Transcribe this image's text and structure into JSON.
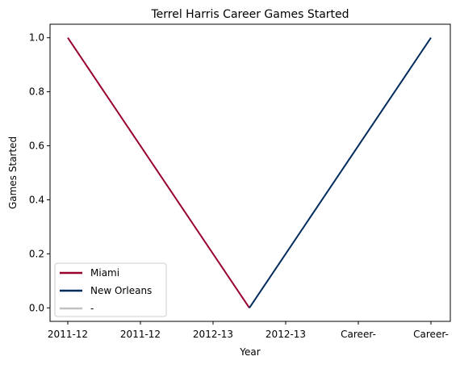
{
  "chart_data": {
    "type": "line",
    "title": "Terrel Harris Career Games Started",
    "xlabel": "Year",
    "ylabel": "Games Started",
    "categories": [
      "2011-12",
      "2011-12",
      "2012-13",
      "2012-13",
      "Career-",
      "Career-"
    ],
    "ylim": [
      -0.05,
      1.05
    ],
    "yticks": [
      0.0,
      0.2,
      0.4,
      0.6,
      0.8,
      1.0
    ],
    "ytick_labels": [
      "0.0",
      "0.2",
      "0.4",
      "0.6",
      "0.8",
      "1.0"
    ],
    "grid": false,
    "legend_position": "bottom-left",
    "series": [
      {
        "name": "Miami",
        "color": "#98002e",
        "points": [
          {
            "x": "2011-12",
            "y": 1.0
          },
          {
            "x": "2012-13",
            "y": 0.0
          }
        ]
      },
      {
        "name": "New Orleans",
        "color": "#002b5c",
        "points": [
          {
            "x": "2012-13",
            "y": 0.0
          },
          {
            "x": "Career-",
            "y": 1.0
          }
        ]
      },
      {
        "name": "-",
        "color": "#c0c0c0",
        "points": []
      }
    ]
  }
}
